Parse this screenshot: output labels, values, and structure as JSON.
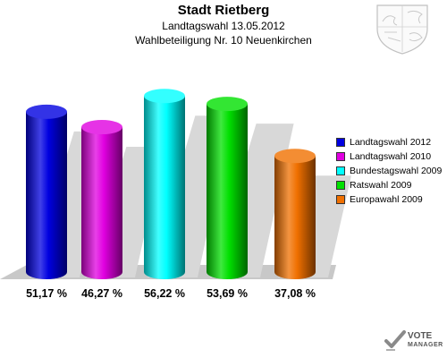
{
  "header": {
    "title": "Stadt Rietberg",
    "subtitle_1": "Landtagswahl 13.05.2012",
    "subtitle_2": "Wahlbeteiligung Nr. 10 Neuenkirchen"
  },
  "chart_data": {
    "type": "bar",
    "title": "Stadt Rietberg",
    "subtitle": [
      "Landtagswahl 13.05.2012",
      "Wahlbeteiligung Nr. 10 Neuenkirchen"
    ],
    "xlabel": "",
    "ylabel": "",
    "grid": false,
    "legend_position": "right",
    "categories": [
      "Landtagswahl 2012",
      "Landtagswahl 2010",
      "Bundestagswahl 2009",
      "Ratswahl 2009",
      "Europawahl 2009"
    ],
    "values": [
      51.17,
      46.27,
      56.22,
      53.69,
      37.08
    ],
    "value_labels": [
      "51,17 %",
      "46,27 %",
      "56,22 %",
      "53,69 %",
      "37,08 %"
    ],
    "colors": [
      "#0000e0",
      "#e000e0",
      "#00ffff",
      "#00e000",
      "#f07000"
    ]
  },
  "logo": {
    "line1": "VOTE",
    "line2": "MANAGER",
    "icon": "checkmark-icon"
  },
  "crest_icon": "coat-of-arms-icon"
}
